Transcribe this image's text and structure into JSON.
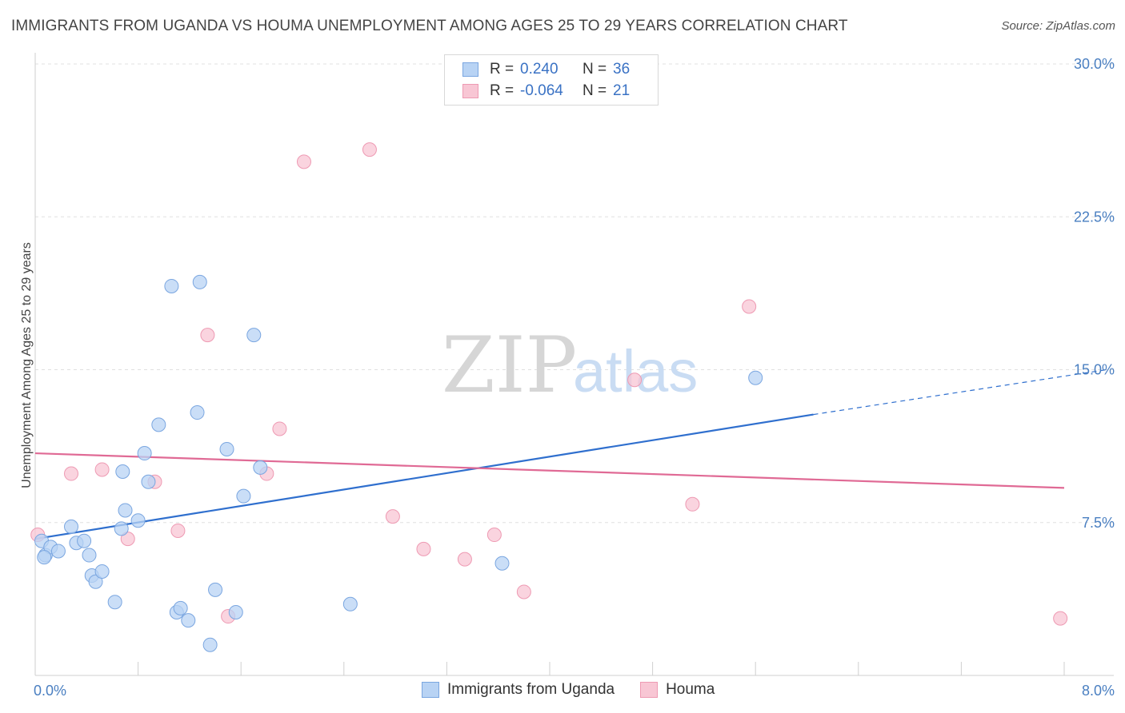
{
  "title": "IMMIGRANTS FROM UGANDA VS HOUMA UNEMPLOYMENT AMONG AGES 25 TO 29 YEARS CORRELATION CHART",
  "source": "Source: ZipAtlas.com",
  "watermark": {
    "zip": "ZIP",
    "atlas": "atlas"
  },
  "legend": {
    "rows": [
      {
        "r_label": "R =",
        "r_value": "0.240",
        "n_label": "N =",
        "n_value": "36"
      },
      {
        "r_label": "R =",
        "r_value": "-0.064",
        "n_label": "N =",
        "n_value": "21"
      }
    ]
  },
  "colors": {
    "uganda_fill": "#b8d3f4",
    "uganda_stroke": "#7aa6e0",
    "uganda_line": "#2f6fce",
    "houma_fill": "#f8c6d4",
    "houma_stroke": "#ee9ab3",
    "houma_line": "#e06a95",
    "tick": "#4a7fc1",
    "grid": "#e0e0e0"
  },
  "chart_data": {
    "type": "scatter",
    "title": "IMMIGRANTS FROM UGANDA VS HOUMA UNEMPLOYMENT AMONG AGES 25 TO 29 YEARS CORRELATION CHART",
    "xlabel": "",
    "ylabel": "Unemployment Among Ages 25 to 29 years",
    "xlim": [
      0,
      8.0
    ],
    "ylim": [
      0,
      30.0
    ],
    "x_ticks": [
      "0.0%",
      "8.0%"
    ],
    "y_ticks": [
      {
        "value": 7.5,
        "label": "7.5%"
      },
      {
        "value": 15.0,
        "label": "15.0%"
      },
      {
        "value": 22.5,
        "label": "22.5%"
      },
      {
        "value": 30.0,
        "label": "30.0%"
      }
    ],
    "grid": true,
    "legend_position": "top-center",
    "series": [
      {
        "name": "Immigrants from Uganda",
        "points": [
          [
            0.05,
            6.6
          ],
          [
            0.08,
            5.9
          ],
          [
            0.12,
            6.3
          ],
          [
            0.18,
            6.1
          ],
          [
            0.28,
            7.3
          ],
          [
            0.32,
            6.5
          ],
          [
            0.38,
            6.6
          ],
          [
            0.42,
            5.9
          ],
          [
            0.44,
            4.9
          ],
          [
            0.47,
            4.6
          ],
          [
            0.52,
            5.1
          ],
          [
            0.62,
            3.6
          ],
          [
            0.67,
            7.2
          ],
          [
            0.68,
            10.0
          ],
          [
            0.7,
            8.1
          ],
          [
            0.8,
            7.6
          ],
          [
            0.85,
            10.9
          ],
          [
            0.88,
            9.5
          ],
          [
            0.96,
            12.3
          ],
          [
            1.06,
            19.1
          ],
          [
            1.1,
            3.1
          ],
          [
            1.13,
            3.3
          ],
          [
            1.19,
            2.7
          ],
          [
            1.26,
            12.9
          ],
          [
            1.28,
            19.3
          ],
          [
            1.36,
            1.5
          ],
          [
            1.4,
            4.2
          ],
          [
            1.49,
            11.1
          ],
          [
            1.56,
            3.1
          ],
          [
            1.62,
            8.8
          ],
          [
            1.7,
            16.7
          ],
          [
            1.75,
            10.2
          ],
          [
            2.45,
            3.5
          ],
          [
            3.63,
            5.5
          ],
          [
            5.6,
            14.6
          ],
          [
            0.07,
            5.8
          ]
        ]
      },
      {
        "name": "Houma",
        "points": [
          [
            0.02,
            6.9
          ],
          [
            0.28,
            9.9
          ],
          [
            0.52,
            10.1
          ],
          [
            0.72,
            6.7
          ],
          [
            0.93,
            9.5
          ],
          [
            1.11,
            7.1
          ],
          [
            1.34,
            16.7
          ],
          [
            1.5,
            2.9
          ],
          [
            1.8,
            9.9
          ],
          [
            1.9,
            12.1
          ],
          [
            2.09,
            25.2
          ],
          [
            2.6,
            25.8
          ],
          [
            2.78,
            7.8
          ],
          [
            3.02,
            6.2
          ],
          [
            3.34,
            5.7
          ],
          [
            3.57,
            6.9
          ],
          [
            3.8,
            4.1
          ],
          [
            4.66,
            14.5
          ],
          [
            5.11,
            8.4
          ],
          [
            5.55,
            18.1
          ],
          [
            7.97,
            2.8
          ]
        ]
      }
    ],
    "trendlines": [
      {
        "series": "Immigrants from Uganda",
        "x": [
          0.0,
          6.05
        ],
        "y": [
          6.7,
          12.8
        ],
        "dashed_extension_to": [
          8.0,
          15.0
        ]
      },
      {
        "series": "Houma",
        "x": [
          0.0,
          8.0
        ],
        "y": [
          10.9,
          9.2
        ]
      }
    ]
  },
  "bottom_legend": [
    {
      "label": "Immigrants from Uganda"
    },
    {
      "label": "Houma"
    }
  ]
}
